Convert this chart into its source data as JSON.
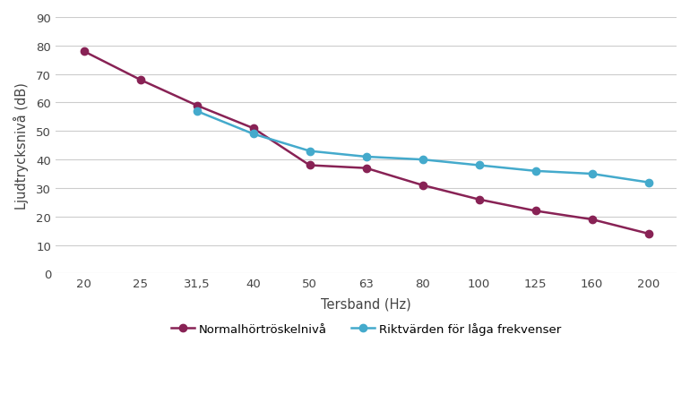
{
  "x_labels": [
    "20",
    "25",
    "31,5",
    "40",
    "50",
    "63",
    "80",
    "100",
    "125",
    "160",
    "200"
  ],
  "x_values": [
    1,
    2,
    3,
    4,
    5,
    6,
    7,
    8,
    9,
    10,
    11
  ],
  "normal_hearing": [
    78,
    68,
    59,
    51,
    38,
    37,
    31,
    26,
    22,
    19,
    14
  ],
  "riktvarden": [
    null,
    null,
    57,
    49,
    43,
    41,
    40,
    38,
    36,
    35,
    32
  ],
  "normal_color": "#882255",
  "riktvarden_color": "#44AACC",
  "xlabel": "Tersband (Hz)",
  "ylabel": "Ljudtrycksnivå (dB)",
  "ylim": [
    0,
    90
  ],
  "yticks": [
    0,
    10,
    20,
    30,
    40,
    50,
    60,
    70,
    80,
    90
  ],
  "legend_normal": "Normalhörtröskelnivå",
  "legend_riktvarden": "Riktvärden för låga frekvenser",
  "background_color": "#ffffff",
  "plot_bg_color": "#ffffff",
  "grid_color": "#cccccc",
  "marker_size": 6,
  "linewidth": 1.8
}
